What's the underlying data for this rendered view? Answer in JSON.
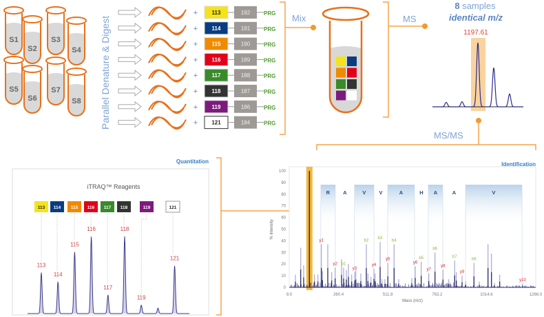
{
  "colors": {
    "orange": "#f39a2a",
    "tube": "#e8701a",
    "label_blue": "#7fa3d6",
    "heading_blue": "#2f7fc4",
    "prg_green": "#4a9a2a",
    "ion_red": "#e0202a",
    "ion_green": "#8ab83a",
    "spectrum": "#2a2a6e"
  },
  "samples": [
    "S1",
    "S2",
    "S3",
    "S4",
    "S5",
    "S6",
    "S7",
    "S8"
  ],
  "step_label": "Parallel  Denature  &  Digest",
  "reagents": [
    {
      "tag": "113",
      "balance": "192",
      "color": "#f5e31a",
      "text": "#222"
    },
    {
      "tag": "114",
      "balance": "191",
      "color": "#0a3d80",
      "text": "#fff"
    },
    {
      "tag": "115",
      "balance": "190",
      "color": "#f08a00",
      "text": "#fff"
    },
    {
      "tag": "116",
      "balance": "189",
      "color": "#e2001a",
      "text": "#fff"
    },
    {
      "tag": "117",
      "balance": "188",
      "color": "#3a8a2a",
      "text": "#fff"
    },
    {
      "tag": "118",
      "balance": "187",
      "color": "#333333",
      "text": "#fff"
    },
    {
      "tag": "119",
      "balance": "186",
      "color": "#7d1a7d",
      "text": "#fff"
    },
    {
      "tag": "121",
      "balance": "184",
      "color": "#ffffff",
      "text": "#222"
    }
  ],
  "plus": "+",
  "prg": "PRG",
  "mix_label": "Mix",
  "ms_label": "MS",
  "msms_label": "MS/MS",
  "ms_title_count": "8",
  "ms_title_rest": " samples",
  "ms_subtitle": "identical m/z",
  "ms_peak_label": "1197.61",
  "ms_spectrum": {
    "relative_intensities": [
      7,
      8,
      100,
      61,
      20
    ],
    "highlighted_index": 2
  },
  "quantitation": {
    "heading": "Quantitation",
    "title": "iTRAQ™ Reagents",
    "chart_data": {
      "type": "line",
      "peaks": [
        {
          "label": "113",
          "mz": 113,
          "intensity": 53
        },
        {
          "label": "114",
          "mz": 114,
          "intensity": 41
        },
        {
          "label": "115",
          "mz": 115,
          "intensity": 80
        },
        {
          "label": "116",
          "mz": 116,
          "intensity": 100
        },
        {
          "label": "117",
          "mz": 117,
          "intensity": 24
        },
        {
          "label": "118",
          "mz": 118,
          "intensity": 100
        },
        {
          "label": "119",
          "mz": 119,
          "intensity": 11
        },
        {
          "label": "121",
          "mz": 121,
          "intensity": 62
        }
      ],
      "unlabeled_peaks": [
        {
          "mz": 120,
          "intensity": 7
        }
      ]
    }
  },
  "identification": {
    "heading": "Identification",
    "chart_data": {
      "type": "bar",
      "xlabel": "Mass (m/z)",
      "ylabel": "% Intensity",
      "xlim": [
        9.0,
        1266.0
      ],
      "ylim": [
        0,
        100
      ],
      "xticks": [
        "9.0",
        "260.4",
        "511.8",
        "763.2",
        "1014.6",
        "1266.0"
      ],
      "yticks": [
        "0",
        "10",
        "20",
        "30",
        "40",
        "50",
        "60",
        "70",
        "80",
        "90",
        "100"
      ],
      "highlighted_mz": 112,
      "sequence": [
        {
          "residue": "R",
          "from": 170,
          "to": 244,
          "shaded": true
        },
        {
          "residue": "A",
          "from": 244,
          "to": 342,
          "shaded": false
        },
        {
          "residue": "V",
          "from": 342,
          "to": 441,
          "shaded": true
        },
        {
          "residue": "V",
          "from": 441,
          "to": 511,
          "shaded": false
        },
        {
          "residue": "A",
          "from": 511,
          "to": 648,
          "shaded": true
        },
        {
          "residue": "H",
          "from": 648,
          "to": 718,
          "shaded": false
        },
        {
          "residue": "A",
          "from": 718,
          "to": 792,
          "shaded": true
        },
        {
          "residue": "A",
          "from": 792,
          "to": 908,
          "shaded": false
        },
        {
          "residue": "V",
          "from": 908,
          "to": 1196,
          "shaded": true
        }
      ],
      "peaks": [
        [
          40.6,
          11
        ],
        [
          67.6,
          34
        ],
        [
          82.7,
          19
        ],
        [
          112,
          100
        ],
        [
          137.9,
          11
        ],
        [
          155.4,
          11
        ],
        [
          173,
          37
        ],
        [
          178.6,
          14
        ],
        [
          205.6,
          37
        ],
        [
          225.6,
          13
        ],
        [
          243.2,
          17
        ],
        [
          275.8,
          24
        ],
        [
          286.4,
          17
        ],
        [
          300.4,
          15
        ],
        [
          310.9,
          20
        ],
        [
          327.4,
          11
        ],
        [
          342.5,
          13
        ],
        [
          348.5,
          15
        ],
        [
          374.2,
          12
        ],
        [
          402.2,
          37
        ],
        [
          410.3,
          12
        ],
        [
          425.8,
          9
        ],
        [
          440.9,
          16
        ],
        [
          446.8,
          12
        ],
        [
          472.5,
          39
        ],
        [
          481.9,
          7
        ],
        [
          497,
          7
        ],
        [
          512.1,
          21
        ],
        [
          543.7,
          37
        ],
        [
          567.2,
          7
        ],
        [
          633.9,
          8
        ],
        [
          651.5,
          18
        ],
        [
          682,
          22
        ],
        [
          720.7,
          12
        ],
        [
          752.3,
          30
        ],
        [
          793,
          15
        ],
        [
          822.5,
          7
        ],
        [
          852.7,
          23
        ],
        [
          861.1,
          13
        ],
        [
          890.3,
          10
        ],
        [
          908.9,
          5
        ],
        [
          951,
          21
        ],
        [
          978,
          5
        ],
        [
          1022.6,
          37
        ],
        [
          1040.2,
          29
        ],
        [
          1055.3,
          4
        ],
        [
          1082.3,
          11
        ],
        [
          1199.3,
          3
        ]
      ],
      "ions": [
        {
          "label": "y1",
          "mz": 173,
          "type": "y"
        },
        {
          "label": "y2",
          "mz": 243.2,
          "type": "y"
        },
        {
          "label": "b1",
          "mz": 286.4,
          "type": "b"
        },
        {
          "label": "y3",
          "mz": 342.5,
          "type": "y"
        },
        {
          "label": "b2",
          "mz": 402.2,
          "type": "b"
        },
        {
          "label": "y4",
          "mz": 440.9,
          "type": "y"
        },
        {
          "label": "b3",
          "mz": 472.5,
          "type": "b"
        },
        {
          "label": "y5",
          "mz": 512.1,
          "type": "y"
        },
        {
          "label": "b4",
          "mz": 543.7,
          "type": "b"
        },
        {
          "label": "y6",
          "mz": 651.5,
          "type": "y"
        },
        {
          "label": "b5",
          "mz": 682,
          "type": "b"
        },
        {
          "label": "y7",
          "mz": 720.7,
          "type": "y"
        },
        {
          "label": "b6",
          "mz": 752.3,
          "type": "b"
        },
        {
          "label": "y8",
          "mz": 793,
          "type": "y"
        },
        {
          "label": "b7",
          "mz": 852.7,
          "type": "b"
        },
        {
          "label": "y9",
          "mz": 890.3,
          "type": "y"
        },
        {
          "label": "b8",
          "mz": 951,
          "type": "b"
        },
        {
          "label": "y10",
          "mz": 1199.3,
          "type": "y"
        }
      ]
    }
  }
}
